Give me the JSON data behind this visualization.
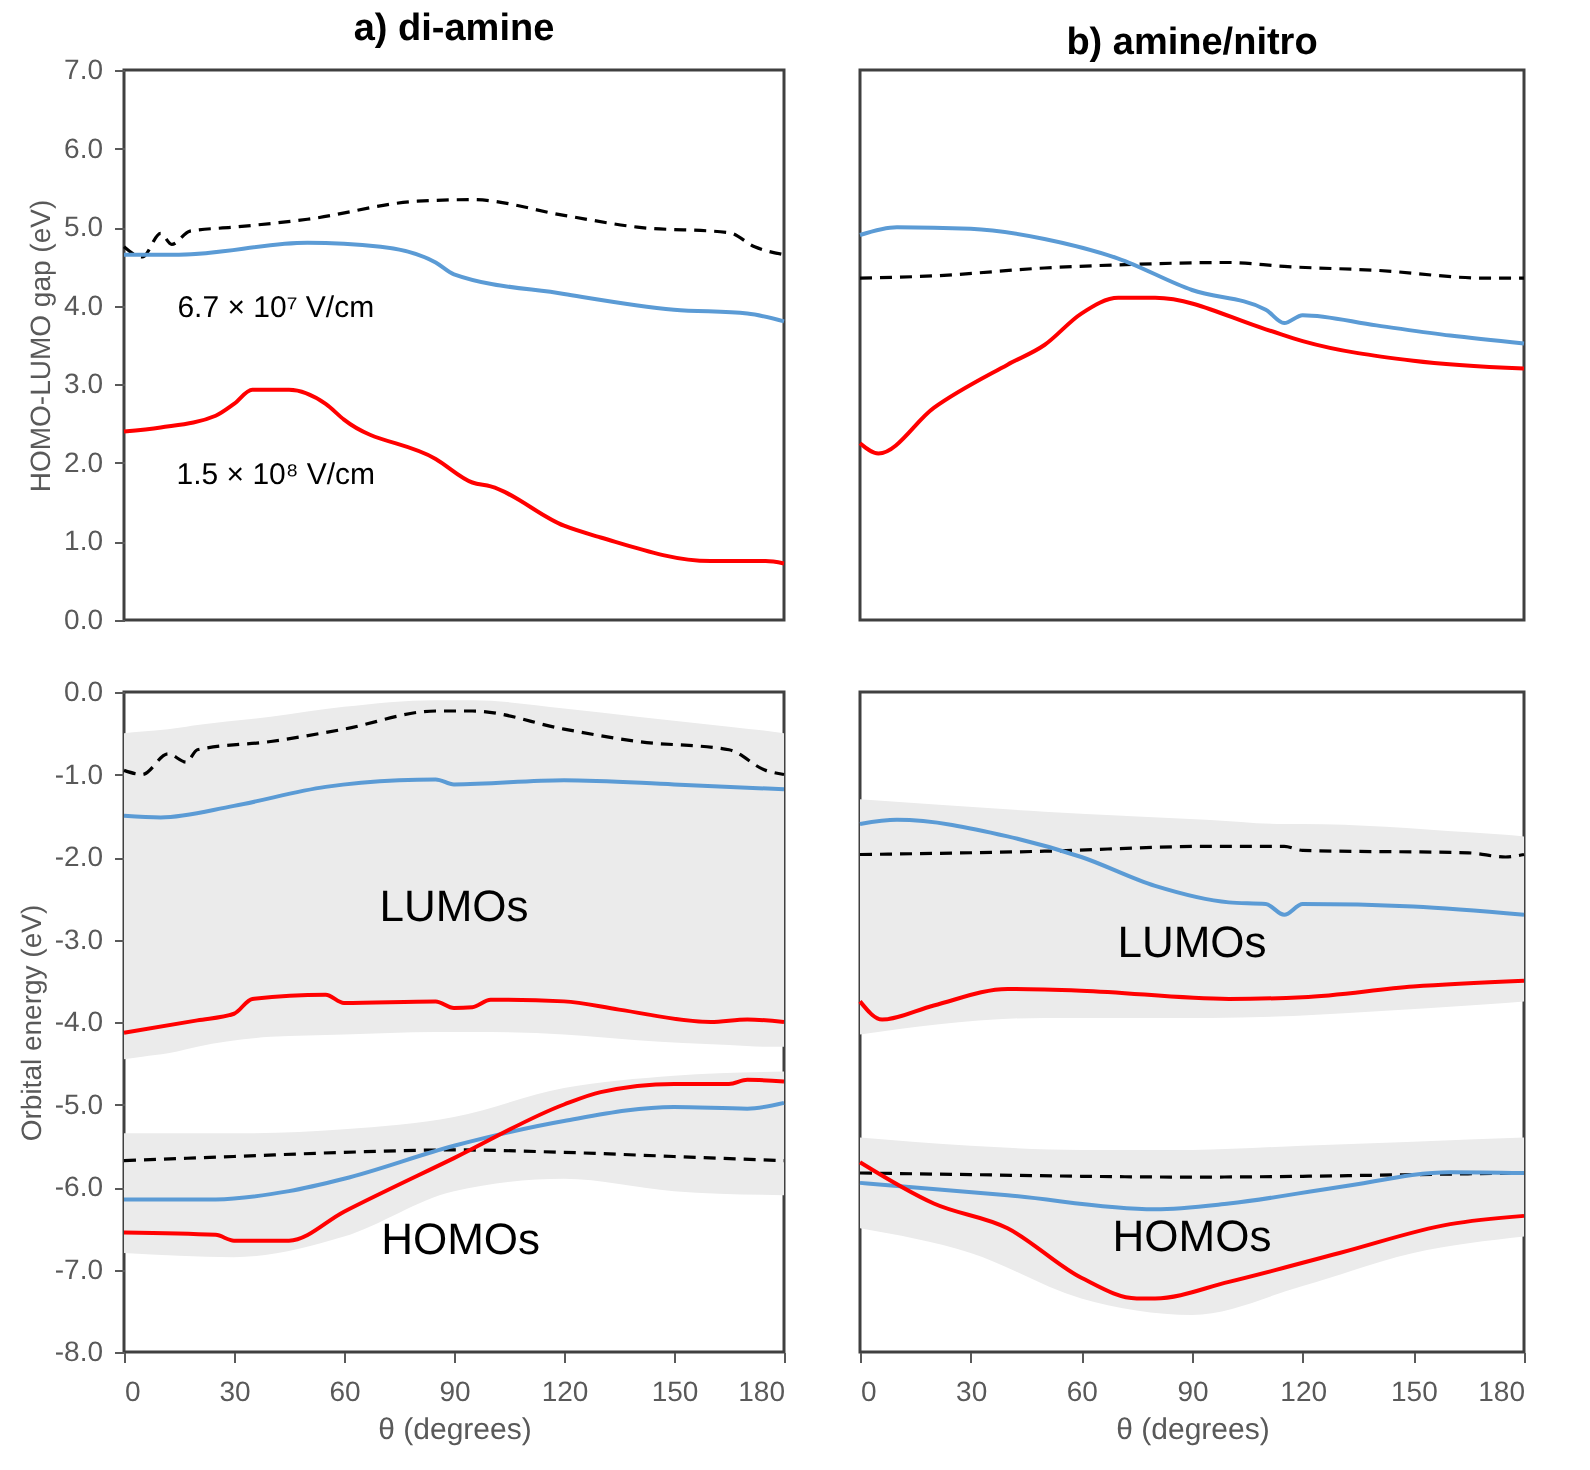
{
  "chart_data": [
    {
      "type": "line",
      "title": "a) di-amine",
      "ylabel": "HOMO-LUMO gap (eV)",
      "xlim": [
        0,
        180
      ],
      "ylim": [
        0,
        7
      ],
      "yticks": [
        {
          "value": 0,
          "label": "0.0"
        },
        {
          "value": 1,
          "label": "1.0"
        },
        {
          "value": 2,
          "label": "2.0"
        },
        {
          "value": 3,
          "label": "3.0"
        },
        {
          "value": 4,
          "label": "4.0"
        },
        {
          "value": 5,
          "label": "5.0"
        },
        {
          "value": 6,
          "label": "6.0"
        },
        {
          "value": 7,
          "label": "7.0"
        }
      ],
      "tick_labels": "y",
      "series": [
        {
          "color": "#000000",
          "line_style": "dashed",
          "x": [
            0,
            5,
            10,
            13,
            18,
            30,
            50,
            80,
            95,
            120,
            140,
            165,
            172,
            180
          ],
          "values": [
            4.75,
            4.62,
            4.92,
            4.78,
            4.95,
            5.0,
            5.1,
            5.33,
            5.35,
            5.15,
            5.0,
            4.93,
            4.75,
            4.65
          ]
        },
        {
          "color": "#5b9bd5",
          "x": [
            0,
            15,
            50,
            70,
            85,
            90,
            120,
            150,
            170,
            180
          ],
          "values": [
            4.65,
            4.65,
            4.8,
            4.75,
            4.55,
            4.4,
            4.15,
            3.95,
            3.9,
            3.8
          ]
        },
        {
          "color": "#ff0000",
          "x": [
            0,
            10,
            25,
            30,
            35,
            45,
            55,
            60,
            85,
            95,
            100,
            120,
            130,
            160,
            175,
            180
          ],
          "values": [
            2.4,
            2.45,
            2.6,
            2.75,
            2.93,
            2.93,
            2.75,
            2.55,
            2.05,
            1.75,
            1.7,
            1.2,
            1.05,
            0.75,
            0.75,
            0.72
          ]
        }
      ],
      "annotations": [
        "6.7 × 10⁷ V/cm",
        "1.5 × 10⁸ V/cm"
      ]
    },
    {
      "type": "line",
      "title": "b) amine/nitro",
      "xlim": [
        0,
        180
      ],
      "ylim": [
        0,
        7
      ],
      "tick_labels": false,
      "series": [
        {
          "color": "#000000",
          "line_style": "dashed",
          "x": [
            0,
            20,
            50,
            70,
            100,
            115,
            140,
            170,
            180
          ],
          "values": [
            4.35,
            4.38,
            4.48,
            4.52,
            4.55,
            4.5,
            4.45,
            4.35,
            4.35
          ]
        },
        {
          "color": "#5b9bd5",
          "x": [
            0,
            10,
            30,
            50,
            70,
            90,
            110,
            115,
            120,
            140,
            160,
            180
          ],
          "values": [
            4.9,
            5.0,
            4.98,
            4.85,
            4.6,
            4.2,
            3.95,
            3.78,
            3.88,
            3.75,
            3.62,
            3.52
          ]
        },
        {
          "color": "#ff0000",
          "x": [
            0,
            5,
            20,
            40,
            50,
            60,
            70,
            80,
            110,
            120,
            150,
            180
          ],
          "values": [
            2.25,
            2.12,
            2.7,
            3.25,
            3.5,
            3.9,
            4.1,
            4.1,
            3.7,
            3.55,
            3.3,
            3.2
          ]
        }
      ]
    },
    {
      "type": "line",
      "xlabel": "θ (degrees)",
      "ylabel": "Orbital energy (eV)",
      "xlim": [
        0,
        180
      ],
      "ylim": [
        -8,
        0
      ],
      "xticks": [
        0,
        30,
        60,
        90,
        120,
        150,
        180
      ],
      "yticks": [
        {
          "value": -8,
          "label": "-8.0"
        },
        {
          "value": -7,
          "label": "-7.0"
        },
        {
          "value": -6,
          "label": "-6.0"
        },
        {
          "value": -5,
          "label": "-5.0"
        },
        {
          "value": -4,
          "label": "-4.0"
        },
        {
          "value": -3,
          "label": "-3.0"
        },
        {
          "value": -2,
          "label": "-2.0"
        },
        {
          "value": -1,
          "label": "-1.0"
        },
        {
          "value": 0,
          "label": "0.0"
        }
      ],
      "series": [
        {
          "color": "#000000",
          "line_style": "dashed",
          "x": [
            0,
            5,
            12,
            17,
            20,
            40,
            60,
            85,
            95,
            120,
            140,
            165,
            175,
            180
          ],
          "values": [
            -0.95,
            -1.0,
            -0.75,
            -0.85,
            -0.7,
            -0.6,
            -0.45,
            -0.23,
            -0.23,
            -0.45,
            -0.6,
            -0.7,
            -0.95,
            -1.0
          ],
          "upper": [
            -0.5,
            -0.48,
            -0.45,
            -0.42,
            -0.4,
            -0.3,
            -0.18,
            -0.1,
            -0.1,
            -0.2,
            -0.3,
            -0.42,
            -0.47,
            -0.5
          ],
          "lower": [
            -4.45,
            -4.42,
            -4.38,
            -4.33,
            -4.3,
            -4.18,
            -4.15,
            -4.12,
            -4.12,
            -4.15,
            -4.22,
            -4.28,
            -4.3,
            -4.3
          ]
        },
        {
          "color": "#000000",
          "line_style": "dashed",
          "x": [
            0,
            30,
            60,
            90,
            120,
            150,
            180
          ],
          "values": [
            -5.68,
            -5.63,
            -5.58,
            -5.55,
            -5.58,
            -5.63,
            -5.68
          ],
          "upper": [
            -5.35,
            -5.35,
            -5.3,
            -5.15,
            -4.8,
            -4.65,
            -4.6
          ],
          "lower": [
            -6.8,
            -6.85,
            -6.6,
            -6.05,
            -5.9,
            -6.05,
            -6.1
          ]
        },
        {
          "color": "#5b9bd5",
          "x": [
            0,
            10,
            30,
            55,
            75,
            85,
            90,
            120,
            150,
            180
          ],
          "values": [
            -1.5,
            -1.52,
            -1.38,
            -1.15,
            -1.07,
            -1.06,
            -1.12,
            -1.07,
            -1.12,
            -1.18
          ]
        },
        {
          "color": "#ff0000",
          "x": [
            0,
            20,
            30,
            35,
            55,
            60,
            85,
            90,
            95,
            100,
            120,
            135,
            160,
            170,
            180
          ],
          "values": [
            -4.13,
            -3.98,
            -3.9,
            -3.72,
            -3.67,
            -3.77,
            -3.75,
            -3.83,
            -3.82,
            -3.73,
            -3.75,
            -3.85,
            -4.0,
            -3.97,
            -4.0
          ]
        },
        {
          "color": "#5b9bd5",
          "x": [
            0,
            25,
            45,
            60,
            90,
            120,
            150,
            170,
            180
          ],
          "values": [
            -6.15,
            -6.15,
            -6.05,
            -5.9,
            -5.5,
            -5.2,
            -5.03,
            -5.05,
            -4.98
          ]
        },
        {
          "color": "#ff0000",
          "x": [
            0,
            25,
            30,
            45,
            60,
            90,
            120,
            130,
            150,
            165,
            170,
            180
          ],
          "values": [
            -6.55,
            -6.58,
            -6.65,
            -6.65,
            -6.3,
            -5.65,
            -5.0,
            -4.85,
            -4.75,
            -4.75,
            -4.7,
            -4.72
          ]
        }
      ],
      "annotations": [
        "LUMOs",
        "HOMOs"
      ]
    },
    {
      "type": "line",
      "xlabel": "θ (degrees)",
      "xlim": [
        0,
        180
      ],
      "ylim": [
        -8,
        0
      ],
      "xticks": [
        0,
        30,
        60,
        90,
        120,
        150,
        180
      ],
      "tick_labels": "x",
      "series": [
        {
          "color": "#000000",
          "line_style": "dashed",
          "x": [
            0,
            50,
            95,
            115,
            120,
            165,
            175,
            180
          ],
          "values": [
            -1.97,
            -1.93,
            -1.87,
            -1.87,
            -1.92,
            -1.95,
            -2.0,
            -1.97
          ],
          "upper": [
            -1.3,
            -1.45,
            -1.55,
            -1.6,
            -1.6,
            -1.7,
            -1.73,
            -1.75
          ],
          "lower": [
            -4.15,
            -3.95,
            -3.95,
            -3.93,
            -3.92,
            -3.8,
            -3.77,
            -3.75
          ]
        },
        {
          "color": "#000000",
          "line_style": "dashed",
          "x": [
            0,
            30,
            60,
            90,
            120,
            150,
            180
          ],
          "values": [
            -5.83,
            -5.85,
            -5.87,
            -5.88,
            -5.87,
            -5.85,
            -5.83
          ],
          "upper": [
            -5.4,
            -5.5,
            -5.55,
            -5.55,
            -5.5,
            -5.45,
            -5.4
          ],
          "lower": [
            -6.5,
            -6.8,
            -7.35,
            -7.55,
            -7.2,
            -6.8,
            -6.6
          ]
        },
        {
          "color": "#5b9bd5",
          "x": [
            0,
            10,
            40,
            60,
            80,
            100,
            110,
            115,
            120,
            150,
            180
          ],
          "values": [
            -1.6,
            -1.55,
            -1.75,
            -2.0,
            -2.35,
            -2.55,
            -2.57,
            -2.7,
            -2.57,
            -2.6,
            -2.7
          ]
        },
        {
          "color": "#ff0000",
          "x": [
            0,
            6,
            20,
            40,
            60,
            100,
            120,
            150,
            180
          ],
          "values": [
            -3.75,
            -3.97,
            -3.8,
            -3.6,
            -3.62,
            -3.72,
            -3.7,
            -3.57,
            -3.5
          ]
        },
        {
          "color": "#5b9bd5",
          "x": [
            0,
            40,
            80,
            100,
            130,
            160,
            180
          ],
          "values": [
            -5.95,
            -6.1,
            -6.27,
            -6.2,
            -6.0,
            -5.82,
            -5.83
          ]
        },
        {
          "color": "#ff0000",
          "x": [
            0,
            20,
            40,
            60,
            75,
            80,
            100,
            130,
            160,
            180
          ],
          "values": [
            -5.7,
            -6.2,
            -6.5,
            -7.1,
            -7.35,
            -7.35,
            -7.15,
            -6.8,
            -6.45,
            -6.35
          ]
        }
      ],
      "annotations": [
        "LUMOs",
        "HOMOs"
      ]
    }
  ]
}
